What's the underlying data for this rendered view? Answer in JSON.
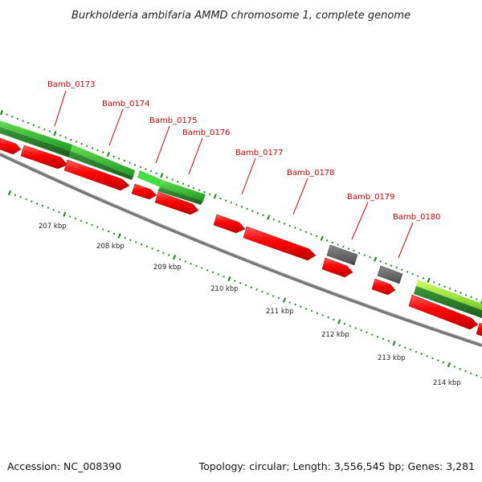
{
  "title": "Burkholderia ambifaria AMMD chromosome 1, complete genome",
  "footer": {
    "accession": "Accession: NC_008390",
    "summary": "Topology: circular; Length: 3,556,545 bp; Genes: 3,281"
  },
  "colors": {
    "gene_forward": "#ff0000",
    "gene_pseudo": "#666666",
    "feature_green": "#33cc33",
    "feature_dark_green": "#228822",
    "feature_light_green": "#99ee33",
    "backbone": "#888888",
    "label": "#cc0000",
    "tick": "#2a8a2a"
  },
  "gene_labels": [
    "Bamb_0173",
    "Bamb_0174",
    "Bamb_0175",
    "Bamb_0176",
    "Bamb_0177",
    "Bamb_0178",
    "Bamb_0179",
    "Bamb_0180"
  ],
  "scale_labels": [
    "207 kbp",
    "208 kbp",
    "209 kbp",
    "210 kbp",
    "211 kbp",
    "212 kbp",
    "213 kbp",
    "214 kbp"
  ]
}
